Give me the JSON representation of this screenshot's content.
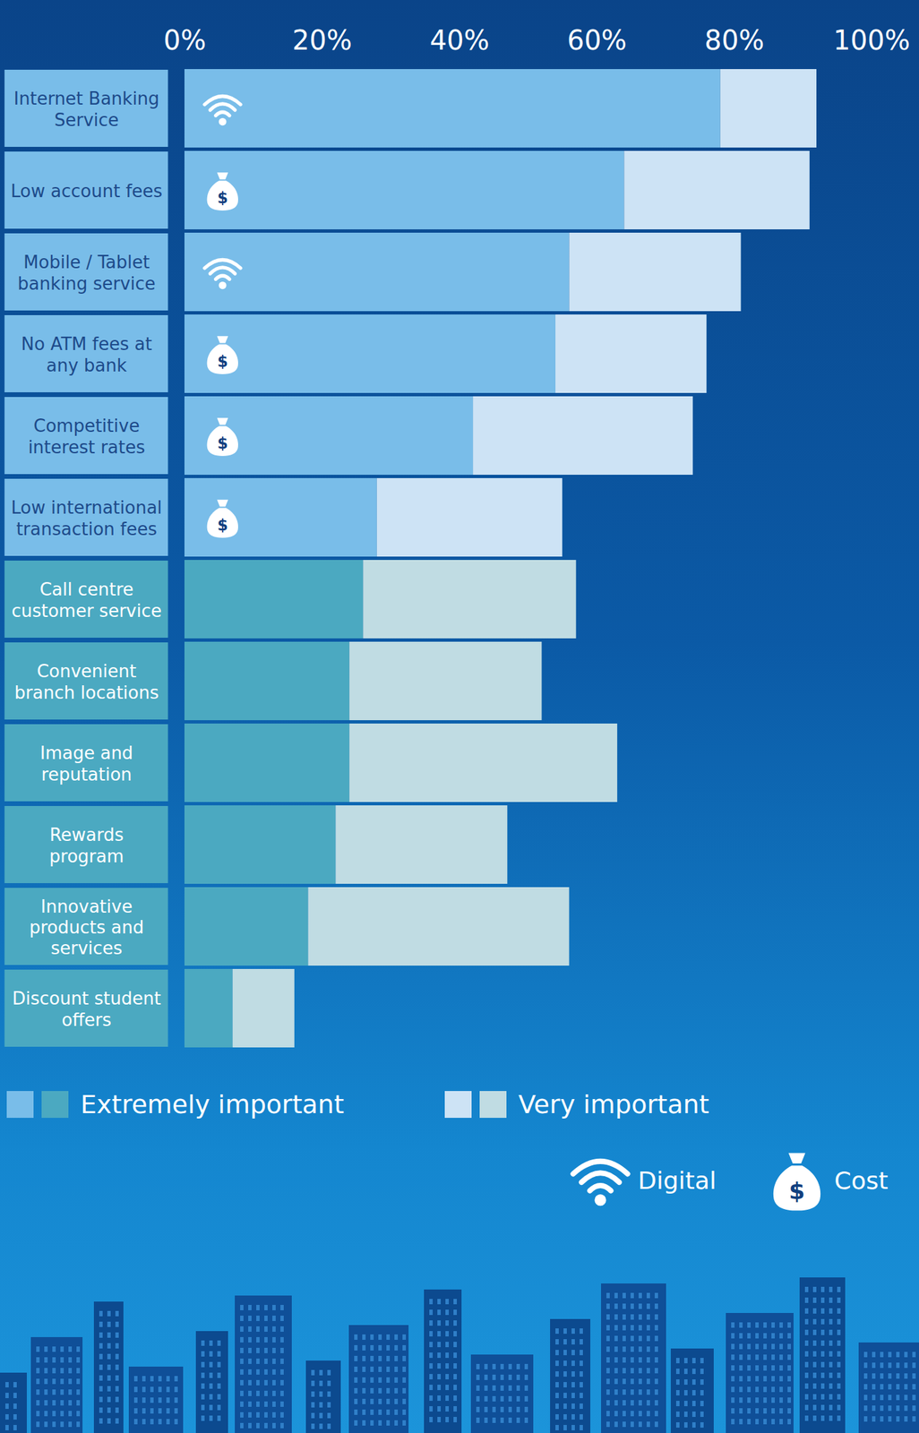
{
  "chart_data": {
    "type": "bar",
    "orientation": "horizontal",
    "stacked": true,
    "categories": [
      "Internet Banking Service",
      "Low account fees",
      "Mobile / Tablet banking service",
      "No ATM fees at any bank",
      "Competitive interest rates",
      "Low international transaction fees",
      "Call centre customer service",
      "Convenient branch locations",
      "Image and reputation",
      "Rewards program",
      "Innovative products and services",
      "Discount student offers"
    ],
    "icons": [
      "Digital",
      "Cost",
      "Digital",
      "Cost",
      "Cost",
      "Cost",
      null,
      null,
      null,
      null,
      null,
      null
    ],
    "series": [
      {
        "name": "Extremely important",
        "colors": [
          "#79bde9",
          "#79bde9",
          "#79bde9",
          "#79bde9",
          "#79bde9",
          "#79bde9",
          "#4ba9c1",
          "#4ba9c1",
          "#4ba9c1",
          "#4ba9c1",
          "#4ba9c1",
          "#4ba9c1"
        ],
        "values": [
          78,
          64,
          56,
          54,
          42,
          28,
          26,
          24,
          24,
          22,
          18,
          7
        ]
      },
      {
        "name": "Very important",
        "colors": [
          "#cde3f5",
          "#cde3f5",
          "#cde3f5",
          "#cde3f5",
          "#cde3f5",
          "#cde3f5",
          "#c0dce3",
          "#c0dce3",
          "#c0dce3",
          "#c0dce3",
          "#c0dce3",
          "#c0dce3"
        ],
        "values": [
          14,
          27,
          25,
          22,
          32,
          27,
          31,
          28,
          39,
          25,
          38,
          9
        ]
      }
    ],
    "xlim": [
      0,
      100
    ],
    "xticks": [
      {
        "value": 0,
        "label": "0%"
      },
      {
        "value": 20,
        "label": "20%"
      },
      {
        "value": 40,
        "label": "40%"
      },
      {
        "value": 60,
        "label": "60%"
      },
      {
        "value": 80,
        "label": "80%"
      },
      {
        "value": 100,
        "label": "100%"
      }
    ],
    "legend": "bottom",
    "grid": false
  }
}
